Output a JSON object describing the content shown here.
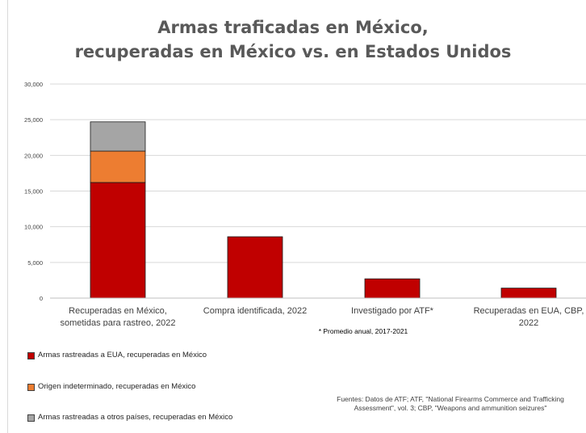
{
  "title_line1": "Armas traficadas en México,",
  "title_line2": "recuperadas en México vs. en Estados Unidos",
  "note": "* Promedio anual, 2017-2021",
  "sources": "Fuentes: Datos de ATF; ATF, \"National  Firearms Commerce and Trafficking Assessment\", vol. 3; CBP, \"Weapons and ammunition seizures\"",
  "legend": [
    {
      "label": "Armas rastreadas a EUA, recuperadas en México",
      "color": "#c00000"
    },
    {
      "label": "Origen indeterminado, recuperadas en México",
      "color": "#ed7d31"
    },
    {
      "label": "Armas rastreadas a otros países, recuperadas en México",
      "color": "#a5a5a5"
    }
  ],
  "chart_data": {
    "type": "bar",
    "stacked": true,
    "title": "Armas traficadas en México, recuperadas en México vs. en Estados Unidos",
    "categories": [
      [
        "Recuperadas en México,",
        "sometidas para rastreo, 2022"
      ],
      [
        "Compra identificada, 2022"
      ],
      [
        "Investigado por ATF*"
      ],
      [
        "Recuperadas en EUA, CBP,",
        "2022"
      ]
    ],
    "series": [
      {
        "name": "Armas rastreadas a EUA, recuperadas en México",
        "color": "#c00000",
        "values": [
          16200,
          8600,
          2700,
          1400
        ]
      },
      {
        "name": "Origen indeterminado, recuperadas en México",
        "color": "#ed7d31",
        "values": [
          4400,
          0,
          0,
          0
        ]
      },
      {
        "name": "Armas rastreadas a otros países, recuperadas en México",
        "color": "#a5a5a5",
        "values": [
          4100,
          0,
          0,
          0
        ]
      }
    ],
    "ylim": [
      0,
      30000
    ],
    "yticks": [
      0,
      5000,
      10000,
      15000,
      20000,
      25000,
      30000
    ],
    "ytick_labels": [
      "0",
      "5,000",
      "10,000",
      "15,000",
      "20,000",
      "25,000",
      "30,000"
    ],
    "grid": true,
    "legend_position": "bottom-left"
  }
}
